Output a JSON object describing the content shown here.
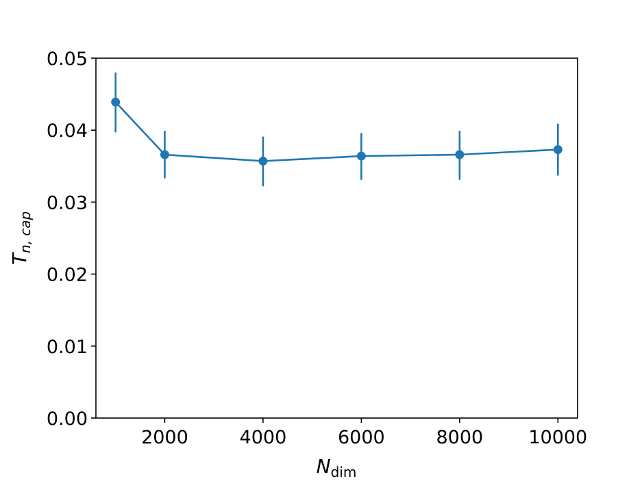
{
  "chart_data": {
    "type": "line",
    "title": "",
    "xlabel": {
      "main": "N",
      "sub": "dim"
    },
    "ylabel": {
      "main": "T",
      "sub": "n, cap"
    },
    "xlim": [
      600,
      10400
    ],
    "ylim": [
      0,
      0.05
    ],
    "xticks": [
      {
        "value": 2000,
        "label": "2000"
      },
      {
        "value": 4000,
        "label": "4000"
      },
      {
        "value": 6000,
        "label": "6000"
      },
      {
        "value": 8000,
        "label": "8000"
      },
      {
        "value": 10000,
        "label": "10000"
      }
    ],
    "yticks": [
      {
        "value": 0.0,
        "label": "0.00"
      },
      {
        "value": 0.01,
        "label": "0.01"
      },
      {
        "value": 0.02,
        "label": "0.02"
      },
      {
        "value": 0.03,
        "label": "0.03"
      },
      {
        "value": 0.04,
        "label": "0.04"
      },
      {
        "value": 0.05,
        "label": "0.05"
      }
    ],
    "grid": false,
    "series": [
      {
        "color": "#1f77b4",
        "marker": "circle",
        "errorbars": true,
        "points": [
          {
            "x": 1000,
            "y": 0.0439,
            "err_low": 0.0397,
            "err_high": 0.048
          },
          {
            "x": 2000,
            "y": 0.0366,
            "err_low": 0.0333,
            "err_high": 0.0399
          },
          {
            "x": 4000,
            "y": 0.0357,
            "err_low": 0.0322,
            "err_high": 0.0391
          },
          {
            "x": 6000,
            "y": 0.0364,
            "err_low": 0.0331,
            "err_high": 0.0396
          },
          {
            "x": 8000,
            "y": 0.0366,
            "err_low": 0.0331,
            "err_high": 0.0399
          },
          {
            "x": 10000,
            "y": 0.0373,
            "err_low": 0.0337,
            "err_high": 0.0409
          }
        ]
      }
    ]
  }
}
